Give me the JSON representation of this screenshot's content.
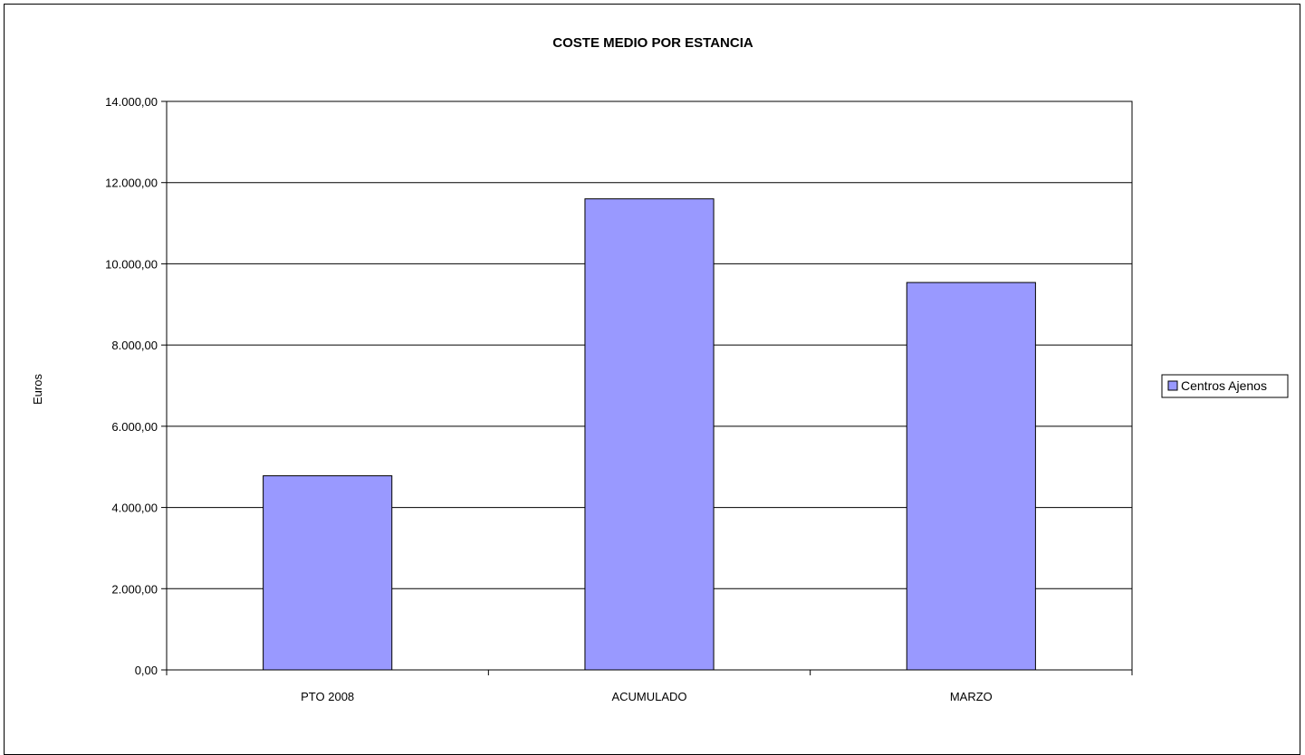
{
  "chart_data": {
    "type": "bar",
    "title": "COSTE MEDIO POR ESTANCIA",
    "xlabel": "",
    "ylabel": "Euros",
    "categories": [
      "PTO 2008",
      "ACUMULADO",
      "MARZO"
    ],
    "series": [
      {
        "name": "Centros Ajenos",
        "values": [
          4780,
          11600,
          9540
        ],
        "color": "#9999ff"
      }
    ],
    "ylim": [
      0,
      14000
    ],
    "yticks": [
      0,
      2000,
      4000,
      6000,
      8000,
      10000,
      12000,
      14000
    ],
    "ytick_labels": [
      "0,00",
      "2.000,00",
      "4.000,00",
      "6.000,00",
      "8.000,00",
      "10.000,00",
      "12.000,00",
      "14.000,00"
    ],
    "grid": true,
    "legend_position": "right"
  }
}
